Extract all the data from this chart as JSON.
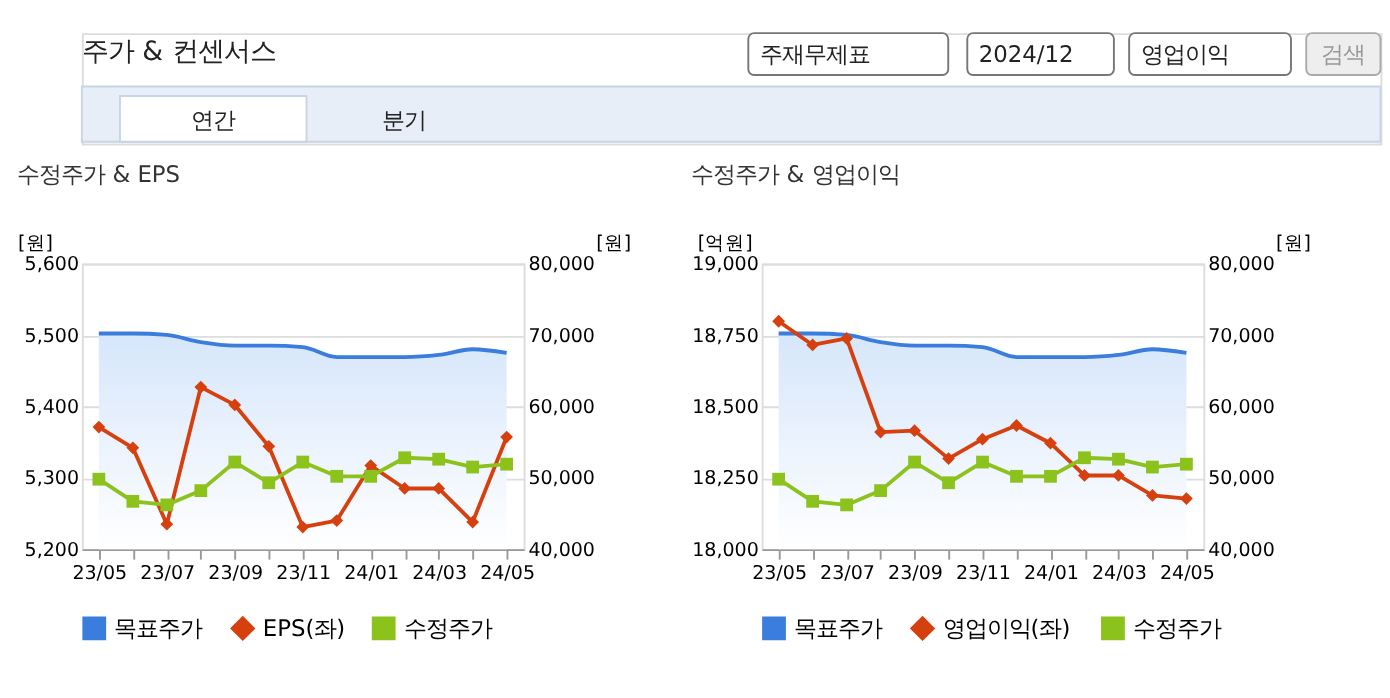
{
  "chart_data": [
    {
      "type": "other",
      "title": "주가 & 컨센서스",
      "annotations": [
        "주재무제표",
        "2024/12",
        "영업이익",
        "검색",
        "연간",
        "분기"
      ]
    },
    {
      "type": "line",
      "title": "수정주가 & EPS",
      "ylabel": "[원]",
      "y2label": "[원]",
      "categories": [
        "23/05",
        null,
        "23/07",
        null,
        "23/09",
        null,
        "23/11",
        null,
        "24/01",
        null,
        "24/03",
        null,
        "24/05"
      ],
      "series": [
        {
          "name": "목표주가",
          "type": "area",
          "axis": "y2",
          "color": "#3b7ddd",
          "marker": "none",
          "values": [
            70200,
            70200,
            70000,
            69000,
            68500,
            68500,
            68300,
            66900,
            66900,
            66900,
            67200,
            68000,
            67500
          ]
        },
        {
          "name": "EPS(좌)",
          "type": "line",
          "color": "#d6400e",
          "marker": "diamond",
          "values": [
            5371,
            5342,
            5235,
            5427,
            5402,
            5344,
            5231,
            5240,
            5317,
            5285,
            5285,
            5238,
            5357
          ]
        },
        {
          "name": "수정주가",
          "type": "line",
          "axis": "y2",
          "color": "#8cc21c",
          "marker": "square",
          "values": [
            49800,
            46700,
            46200,
            48200,
            52200,
            49300,
            52200,
            50200,
            50200,
            52800,
            52600,
            51500,
            51900
          ]
        }
      ],
      "ylim": [
        5200,
        5600
      ],
      "yticks": [
        {
          "value": 5200,
          "label": "5,200"
        },
        {
          "value": 5300,
          "label": "5,300"
        },
        {
          "value": 5400,
          "label": "5,400"
        },
        {
          "value": 5500,
          "label": "5,500"
        },
        {
          "value": 5600,
          "label": "5,600"
        }
      ],
      "y2lim": [
        40000,
        80000
      ],
      "y2ticks": [
        {
          "value": 40000,
          "label": "40,000"
        },
        {
          "value": 50000,
          "label": "50,000"
        },
        {
          "value": 60000,
          "label": "60,000"
        },
        {
          "value": 70000,
          "label": "70,000"
        },
        {
          "value": 80000,
          "label": "80,000"
        }
      ],
      "grid": "y",
      "legend": "bottom"
    },
    {
      "type": "line",
      "title": "수정주가 & 영업이익",
      "ylabel": "[억원]",
      "y2label": "[원]",
      "categories": [
        "23/05",
        null,
        "23/07",
        null,
        "23/09",
        null,
        "23/11",
        null,
        "24/01",
        null,
        "24/03",
        null,
        "24/05"
      ],
      "series": [
        {
          "name": "목표주가",
          "type": "area",
          "axis": "y2",
          "color": "#3b7ddd",
          "marker": "none",
          "values": [
            70200,
            70200,
            70000,
            69000,
            68500,
            68500,
            68300,
            66900,
            66900,
            66900,
            67200,
            68000,
            67500
          ]
        },
        {
          "name": "영업이익(좌)",
          "type": "line",
          "color": "#d6400e",
          "marker": "diamond",
          "values": [
            18798,
            18715,
            18738,
            18410,
            18415,
            18317,
            18385,
            18433,
            18371,
            18258,
            18258,
            18188,
            18177
          ]
        },
        {
          "name": "수정주가",
          "type": "line",
          "axis": "y2",
          "color": "#8cc21c",
          "marker": "square",
          "values": [
            49800,
            46700,
            46200,
            48200,
            52200,
            49300,
            52200,
            50200,
            50200,
            52800,
            52600,
            51500,
            51900
          ]
        }
      ],
      "ylim": [
        18000,
        19000
      ],
      "yticks": [
        {
          "value": 18000,
          "label": "18,000"
        },
        {
          "value": 18250,
          "label": "18,250"
        },
        {
          "value": 18500,
          "label": "18,500"
        },
        {
          "value": 18750,
          "label": "18,750"
        },
        {
          "value": 19000,
          "label": "19,000"
        }
      ],
      "y2lim": [
        40000,
        80000
      ],
      "y2ticks": [
        {
          "value": 40000,
          "label": "40,000"
        },
        {
          "value": 50000,
          "label": "50,000"
        },
        {
          "value": 60000,
          "label": "60,000"
        },
        {
          "value": 70000,
          "label": "70,000"
        },
        {
          "value": 80000,
          "label": "80,000"
        }
      ],
      "grid": "y",
      "legend": "bottom"
    }
  ]
}
